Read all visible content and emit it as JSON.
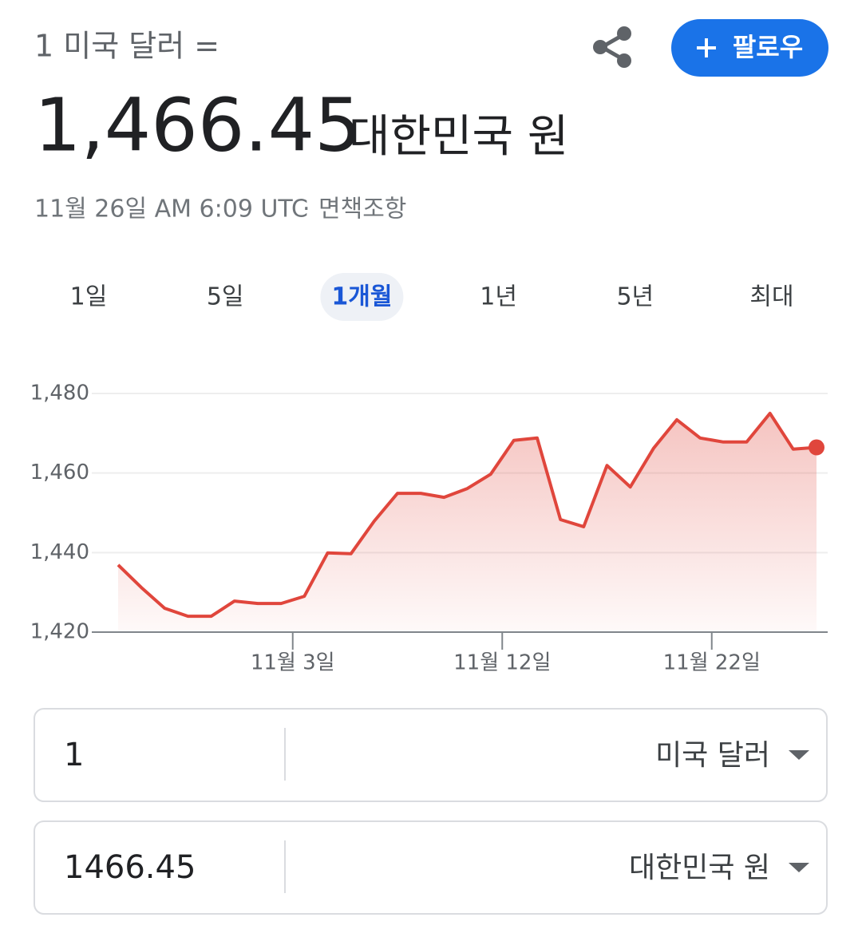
{
  "header": {
    "base": "1 미국 달러 =",
    "rate": "1,466.45",
    "quote_currency": "대한민국 원",
    "timestamp": "11월 26일 AM 6:09 UTC",
    "separator": "·",
    "disclaimer": "면책조항",
    "follow_button": "팔로우"
  },
  "tabs": {
    "items": [
      "1일",
      "5일",
      "1개월",
      "1년",
      "5년",
      "최대"
    ],
    "selected": "1개월"
  },
  "chart_data": {
    "type": "line",
    "x": [
      0,
      1,
      2,
      3,
      4,
      5,
      6,
      7,
      8,
      9,
      10,
      11,
      12,
      13,
      14,
      15,
      16,
      17,
      18,
      19,
      20,
      21,
      22,
      23,
      24,
      25,
      26,
      27,
      28,
      29,
      30
    ],
    "values": [
      1436.9,
      1431.2,
      1426.0,
      1424.0,
      1424.0,
      1427.8,
      1427.2,
      1427.2,
      1429.0,
      1439.9,
      1439.7,
      1447.9,
      1454.9,
      1454.9,
      1453.9,
      1456.1,
      1459.7,
      1468.2,
      1468.8,
      1448.3,
      1446.5,
      1461.9,
      1456.5,
      1466.2,
      1473.4,
      1468.8,
      1467.8,
      1467.8,
      1475.0,
      1466.0,
      1466.45
    ],
    "color": "#e0463c",
    "xlim": [
      0,
      30
    ],
    "xticks": [
      {
        "value": 7.5,
        "label": "11월 3일"
      },
      {
        "value": 16.5,
        "label": "11월 12일"
      },
      {
        "value": 25.5,
        "label": "11월 22일"
      }
    ],
    "ylim": [
      1420,
      1480
    ],
    "yticks": [
      {
        "value": 1420,
        "label": "1,420"
      },
      {
        "value": 1440,
        "label": "1,440"
      },
      {
        "value": 1460,
        "label": "1,460"
      },
      {
        "value": 1480,
        "label": "1,480"
      }
    ],
    "grid": true
  },
  "converter": {
    "rows": [
      {
        "amount": "1",
        "currency": "미국 달러"
      },
      {
        "amount": "1466.45",
        "currency": "대한민국 원"
      }
    ]
  }
}
